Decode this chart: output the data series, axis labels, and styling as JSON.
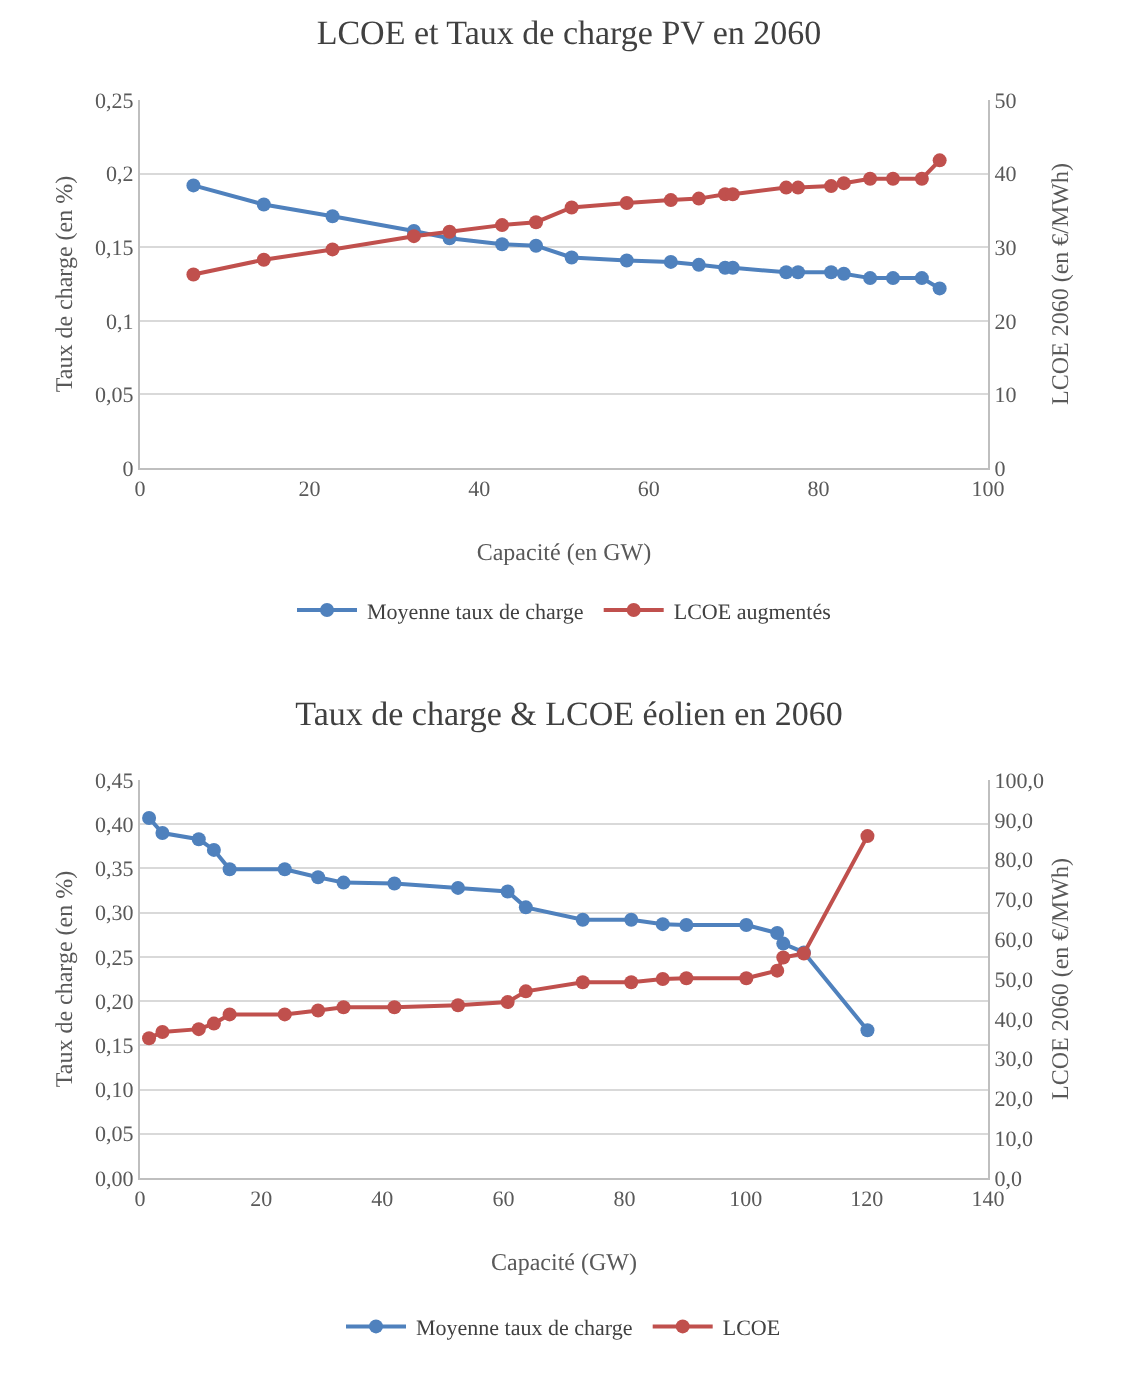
{
  "chart_data": [
    {
      "type": "line",
      "title": "LCOE et Taux de charge PV en 2060",
      "xlabel": "Capacité (en GW)",
      "ylabel": "Taux de charge (en %)",
      "y2label": "LCOE 2060 (en €/MWh)",
      "x": [
        6.3,
        14.6,
        22.7,
        32.3,
        36.5,
        42.7,
        46.7,
        50.9,
        57.4,
        62.6,
        65.9,
        69.0,
        69.9,
        76.2,
        77.6,
        81.5,
        83.0,
        86.1,
        88.8,
        92.2,
        94.3
      ],
      "series": [
        {
          "name": "Moyenne taux de charge",
          "color": "#4f81bd",
          "values": [
            0.192,
            0.179,
            0.171,
            0.161,
            0.156,
            0.152,
            0.151,
            0.143,
            0.141,
            0.14,
            0.138,
            0.136,
            0.136,
            0.133,
            0.133,
            0.133,
            0.132,
            0.129,
            0.129,
            0.129,
            0.122
          ]
        },
        {
          "name": "LCOE augmentés",
          "color": "#c0504d",
          "axis": "y2",
          "values": [
            26.3,
            28.3,
            29.7,
            31.5,
            32.1,
            33.0,
            33.4,
            35.4,
            36.0,
            36.4,
            36.6,
            37.2,
            37.2,
            38.1,
            38.1,
            38.3,
            38.7,
            39.3,
            39.3,
            39.3,
            41.8
          ]
        }
      ],
      "xlim": [
        0,
        100
      ],
      "xticks": [
        0,
        20,
        40,
        60,
        80,
        100
      ],
      "ylim": [
        0,
        0.25
      ],
      "yticks": [
        0,
        {
          "value": 0.05,
          "label": "0,05"
        },
        {
          "value": 0.1,
          "label": "0,1"
        },
        {
          "value": 0.15,
          "label": "0,15"
        },
        {
          "value": 0.2,
          "label": "0,2"
        },
        {
          "value": 0.25,
          "label": "0,25"
        }
      ],
      "y2lim": [
        0,
        50
      ],
      "y2ticks": [
        0,
        10,
        20,
        30,
        40,
        50
      ],
      "grid": "y",
      "legend": "bottom",
      "marker": "circle",
      "line_style": "solid"
    },
    {
      "type": "line",
      "title": "Taux de charge & LCOE éolien en 2060",
      "xlabel": "Capacité (GW)",
      "ylabel": "Taux de charge (en %)",
      "y2label": "LCOE 2060 (en €/MWh)",
      "x": [
        1.5,
        3.7,
        9.7,
        12.2,
        14.8,
        23.9,
        29.4,
        33.6,
        42.0,
        52.5,
        60.7,
        63.7,
        73.1,
        81.1,
        86.3,
        90.2,
        100.1,
        105.2,
        106.2,
        109.6,
        120.1
      ],
      "series": [
        {
          "name": "Moyenne taux de charge",
          "color": "#4f81bd",
          "values": [
            0.407,
            0.39,
            0.383,
            0.371,
            0.349,
            0.349,
            0.34,
            0.334,
            0.333,
            0.328,
            0.324,
            0.306,
            0.292,
            0.292,
            0.287,
            0.286,
            0.286,
            0.277,
            0.265,
            0.255,
            0.167
          ]
        },
        {
          "name": "LCOE",
          "color": "#c0504d",
          "axis": "y2",
          "values": [
            35.1,
            36.7,
            37.4,
            38.8,
            41.1,
            41.1,
            42.1,
            42.9,
            42.9,
            43.4,
            44.2,
            46.9,
            49.2,
            49.2,
            50.0,
            50.2,
            50.2,
            52.1,
            55.4,
            56.4,
            85.9
          ]
        }
      ],
      "xlim": [
        0,
        140
      ],
      "xticks": [
        0,
        20,
        40,
        60,
        80,
        100,
        120,
        140
      ],
      "ylim": [
        0,
        0.45
      ],
      "yticks": [
        {
          "value": 0,
          "label": "0,00"
        },
        {
          "value": 0.05,
          "label": "0,05"
        },
        {
          "value": 0.1,
          "label": "0,10"
        },
        {
          "value": 0.15,
          "label": "0,15"
        },
        {
          "value": 0.2,
          "label": "0,20"
        },
        {
          "value": 0.25,
          "label": "0,25"
        },
        {
          "value": 0.3,
          "label": "0,30"
        },
        {
          "value": 0.35,
          "label": "0,35"
        },
        {
          "value": 0.4,
          "label": "0,40"
        },
        {
          "value": 0.45,
          "label": "0,45"
        }
      ],
      "y2lim": [
        0,
        100
      ],
      "y2ticks": [
        {
          "value": 0,
          "label": "0,0"
        },
        {
          "value": 10,
          "label": "10,0"
        },
        {
          "value": 20,
          "label": "20,0"
        },
        {
          "value": 30,
          "label": "30,0"
        },
        {
          "value": 40,
          "label": "40,0"
        },
        {
          "value": 50,
          "label": "50,0"
        },
        {
          "value": 60,
          "label": "60,0"
        },
        {
          "value": 70,
          "label": "70,0"
        },
        {
          "value": 80,
          "label": "80,0"
        },
        {
          "value": 90,
          "label": "90,0"
        },
        {
          "value": 100,
          "label": "100,0"
        }
      ],
      "grid": "y",
      "legend": "bottom",
      "marker": "circle",
      "line_style": "solid"
    }
  ]
}
